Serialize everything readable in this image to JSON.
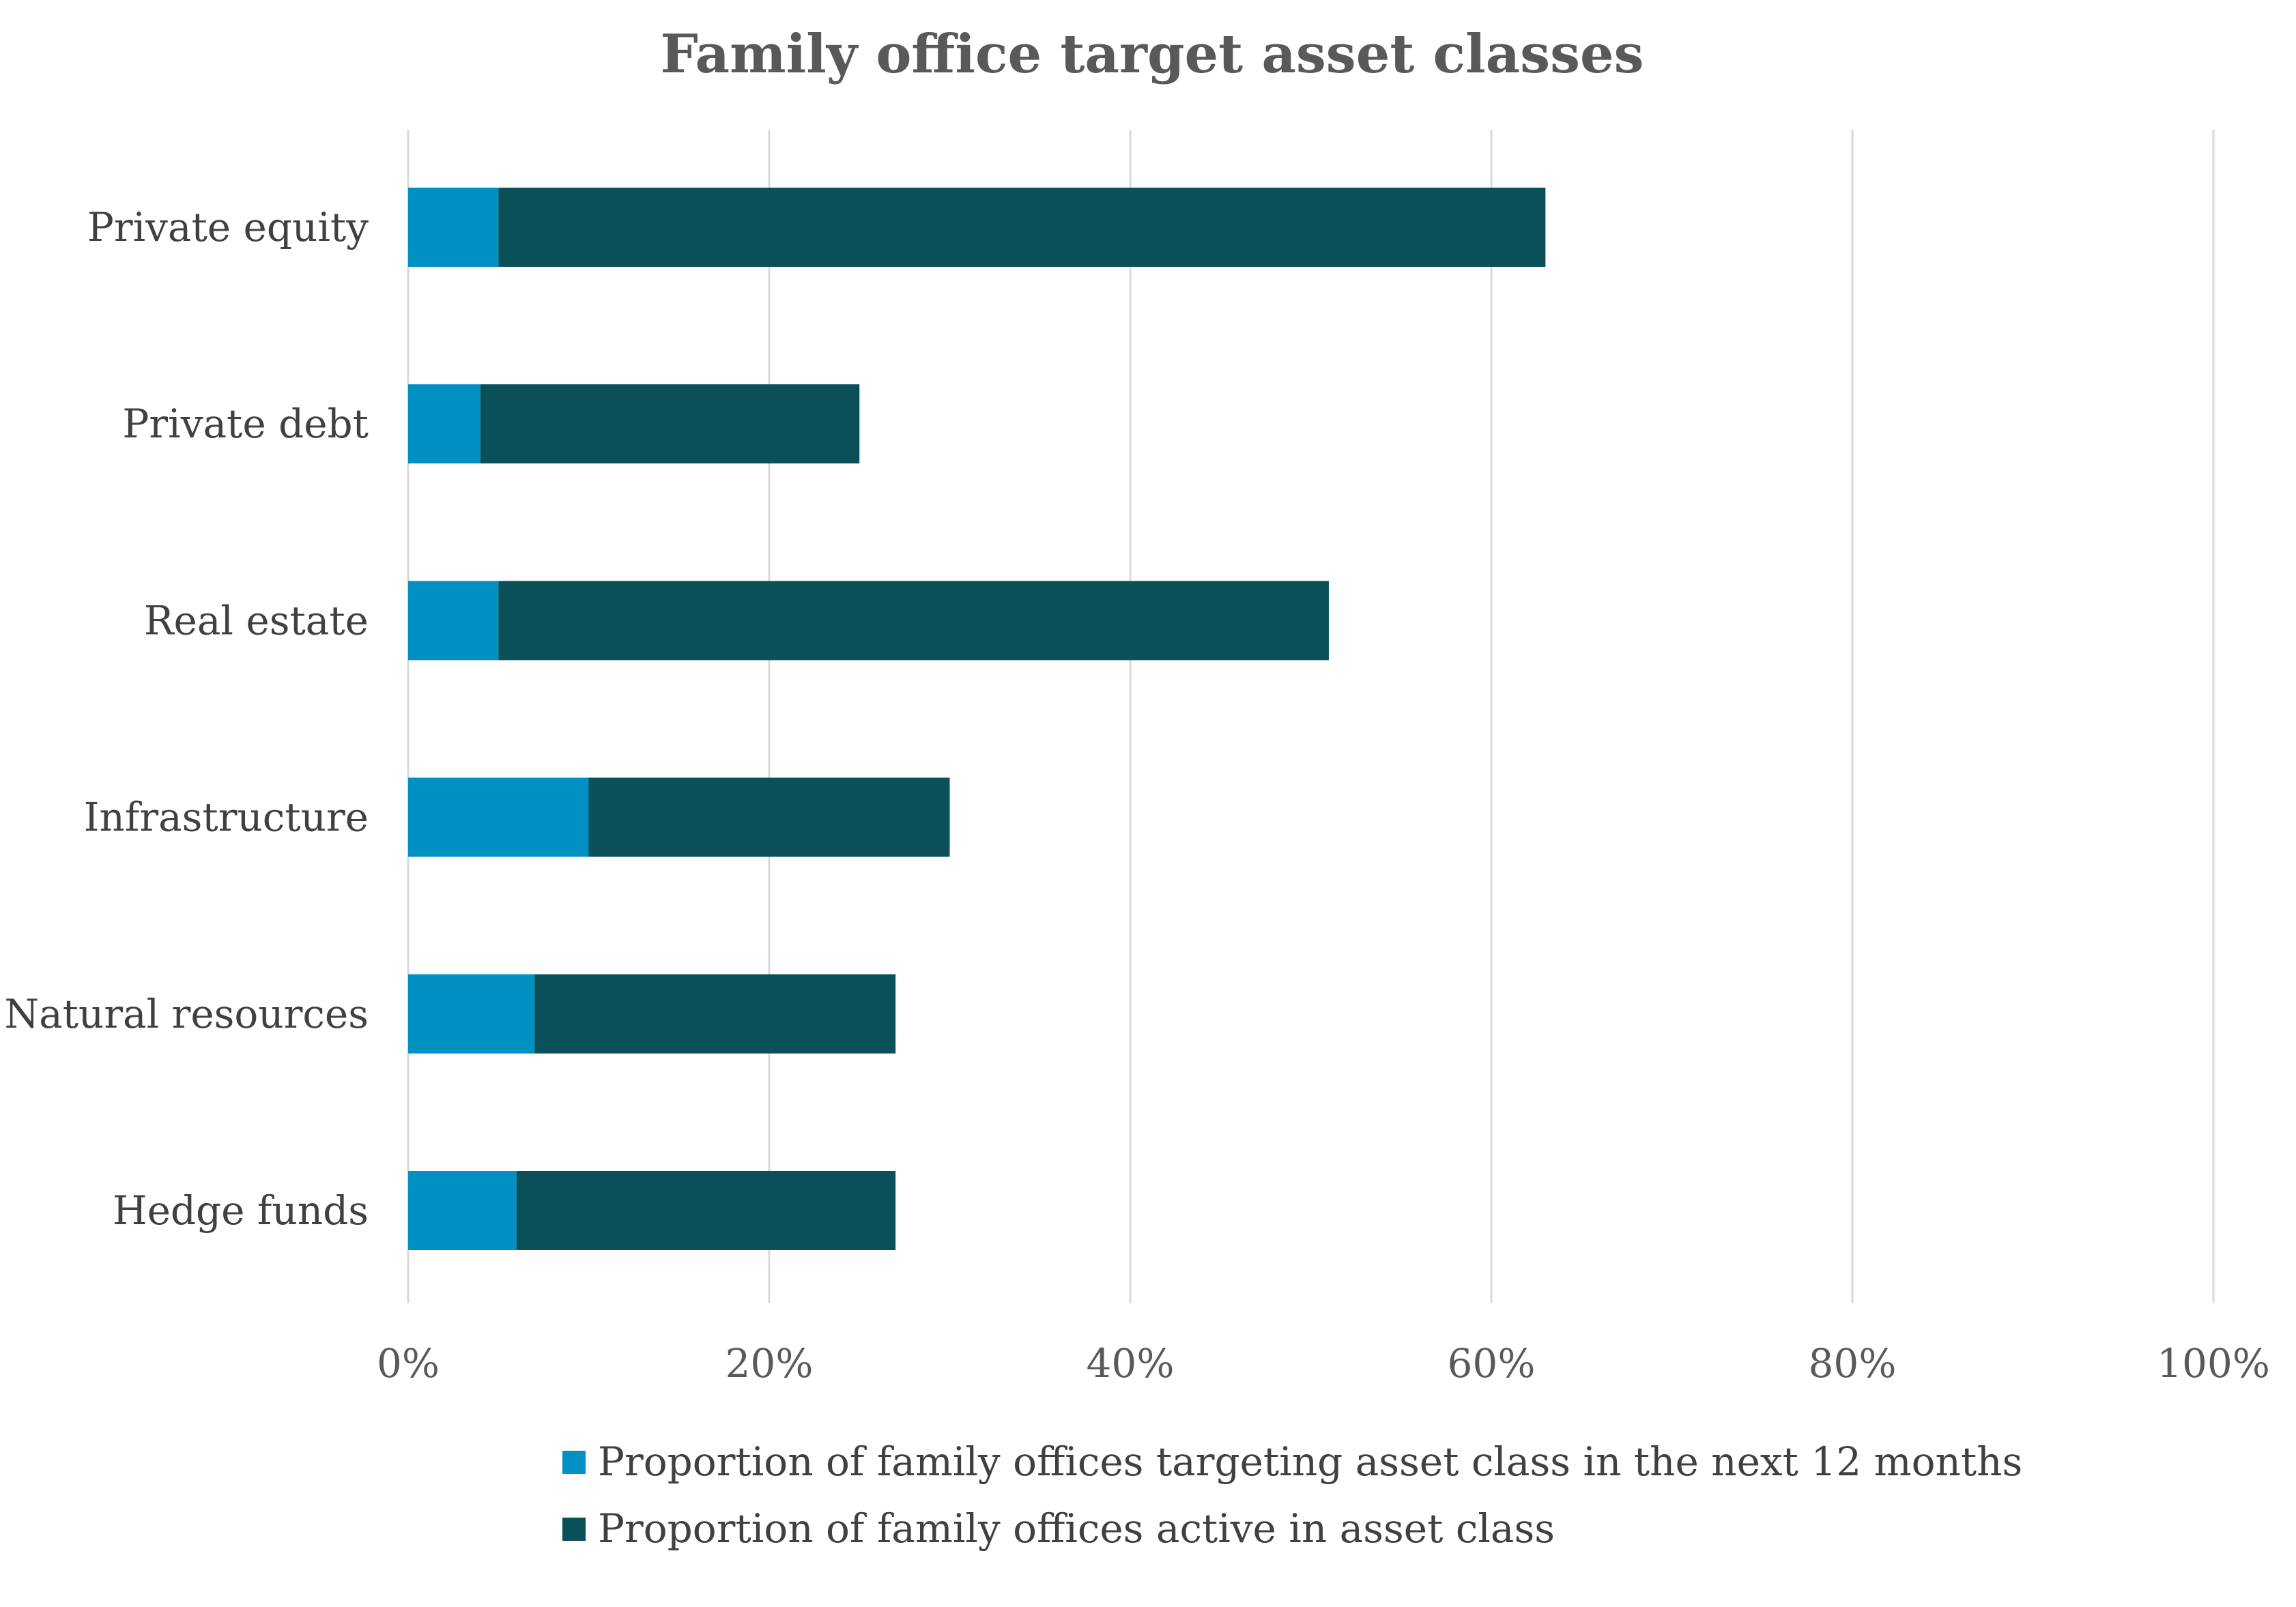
{
  "chart_data": {
    "type": "bar",
    "orientation": "horizontal",
    "stacked": true,
    "title": "Family office target asset classes",
    "categories": [
      "Private equity",
      "Private debt",
      "Real estate",
      "Infrastructure",
      "Natural resources",
      "Hedge funds"
    ],
    "series": [
      {
        "name": "Proportion of family offices targeting asset class in the next 12 months",
        "color": "#0091c2",
        "values": [
          5,
          4,
          5,
          10,
          7,
          6
        ]
      },
      {
        "name": "Proportion of family offices active in asset class",
        "color": "#0a5059",
        "values": [
          58,
          21,
          46,
          20,
          20,
          21
        ]
      }
    ],
    "xlim": [
      0,
      100
    ],
    "x_ticks": [
      "0%",
      "20%",
      "40%",
      "60%",
      "80%",
      "100%"
    ],
    "x_tick_values": [
      0,
      20,
      40,
      60,
      80,
      100
    ],
    "grid": true,
    "legend_position": "bottom"
  }
}
